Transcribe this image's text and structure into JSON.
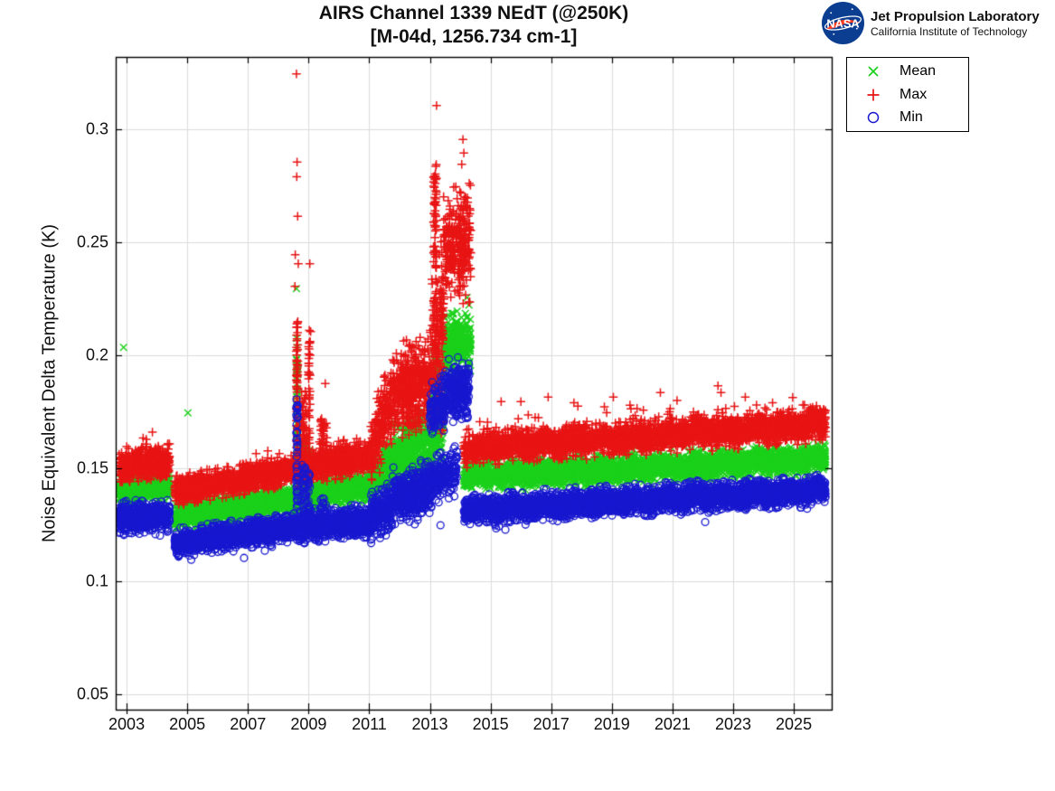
{
  "header": {
    "nasa_logo_text": "NASA",
    "org_name": "Jet Propulsion Laboratory",
    "org_sub": "California Institute of Technology",
    "logo_blue": "#0b3d91",
    "logo_red": "#fc3d21"
  },
  "chart_data": {
    "type": "scatter",
    "title": "AIRS Channel 1339 NEdT (@250K)",
    "subtitle": "[M-04d, 1256.734 cm-1]",
    "ylabel": "Noise Equivalent Delta Temperature (K)",
    "xlim": [
      2002.64,
      2026.25
    ],
    "ylim": [
      0.0432,
      0.332
    ],
    "xticks": [
      {
        "v": 2003,
        "label": "2003"
      },
      {
        "v": 2005,
        "label": "2005"
      },
      {
        "v": 2007,
        "label": "2007"
      },
      {
        "v": 2009,
        "label": "2009"
      },
      {
        "v": 2011,
        "label": "2011"
      },
      {
        "v": 2013,
        "label": "2013"
      },
      {
        "v": 2015,
        "label": "2015"
      },
      {
        "v": 2017,
        "label": "2017"
      },
      {
        "v": 2019,
        "label": "2019"
      },
      {
        "v": 2021,
        "label": "2021"
      },
      {
        "v": 2023,
        "label": "2023"
      },
      {
        "v": 2025,
        "label": "2025"
      }
    ],
    "yticks": [
      {
        "v": 0.05,
        "label": "0.05"
      },
      {
        "v": 0.1,
        "label": "0.1"
      },
      {
        "v": 0.15,
        "label": "0.15"
      },
      {
        "v": 0.2,
        "label": "0.2"
      },
      {
        "v": 0.25,
        "label": "0.25"
      },
      {
        "v": 0.3,
        "label": "0.3"
      }
    ],
    "grid": true,
    "grid_color": "#dcdcdc",
    "axis_color": "#000000",
    "legend_position": "outside-top-right",
    "seed": 42,
    "series": [
      {
        "name": "Mean",
        "marker": "x",
        "color": "#1bd11b",
        "segments": [
          {
            "x0": 2002.75,
            "x1": 2004.42,
            "y0": 0.1405,
            "y1": 0.1425,
            "sp": 0.0028,
            "n": 560
          },
          {
            "x0": 2004.58,
            "x1": 2008.5,
            "y0": 0.1285,
            "y1": 0.1365,
            "sp": 0.0026,
            "n": 1250
          },
          {
            "x0": 2008.5,
            "x1": 2011.05,
            "y0": 0.1365,
            "y1": 0.1425,
            "sp": 0.0028,
            "n": 820
          },
          {
            "x0": 2011.05,
            "x1": 2011.75,
            "y0": 0.144,
            "y1": 0.152,
            "sp": 0.005,
            "n": 230
          },
          {
            "x0": 2011.75,
            "x1": 2013.05,
            "y0": 0.153,
            "y1": 0.16,
            "sp": 0.0068,
            "n": 430
          },
          {
            "x0": 2013.05,
            "x1": 2013.45,
            "y0": 0.163,
            "y1": 0.175,
            "sp": 0.008,
            "n": 130
          },
          {
            "x0": 2013.45,
            "x1": 2014.35,
            "y0": 0.202,
            "y1": 0.206,
            "sp": 0.0062,
            "n": 300,
            "b": [
              0.05,
              0.012,
              1
            ]
          },
          {
            "x0": 2014.12,
            "x1": 2026.05,
            "y0": 0.1462,
            "y1": 0.1542,
            "sp": 0.0026,
            "n": 3800,
            "b": [
              0.02,
              0.007,
              1
            ],
            "wg": [
              0.0008,
              1.0,
              2014.5
            ]
          }
        ],
        "spikes": [
          {
            "x": 2008.62,
            "w": 0.05,
            "ymin": 0.145,
            "ymax": 0.198,
            "n": 40
          },
          {
            "x": 2008.85,
            "w": 0.18,
            "ymin": 0.137,
            "ymax": 0.162,
            "n": 45
          },
          {
            "x": 2009.02,
            "w": 0.05,
            "ymin": 0.14,
            "ymax": 0.158,
            "n": 20
          },
          {
            "x": 2009.5,
            "w": 0.22,
            "ymin": 0.138,
            "ymax": 0.157,
            "n": 40
          },
          {
            "x": 2012.4,
            "w": 0.5,
            "ymin": 0.158,
            "ymax": 0.172,
            "n": 50
          },
          {
            "x": 2013.2,
            "w": 0.18,
            "ymin": 0.175,
            "ymax": 0.205,
            "n": 50
          }
        ],
        "outliers": [
          [
            2002.9,
            0.2035
          ],
          [
            2005.02,
            0.1745
          ],
          [
            2008.6,
            0.2295
          ],
          [
            2008.61,
            0.2075
          ],
          [
            2008.62,
            0.2035
          ],
          [
            2008.6,
            0.1985
          ],
          [
            2008.63,
            0.1955
          ],
          [
            2008.64,
            0.1915
          ],
          [
            2013.48,
            0.2165
          ],
          [
            2013.52,
            0.2135
          ],
          [
            2013.56,
            0.211
          ]
        ]
      },
      {
        "name": "Max",
        "marker": "+",
        "color": "#e81414",
        "segments": [
          {
            "x0": 2002.75,
            "x1": 2004.42,
            "y0": 0.1505,
            "y1": 0.153,
            "sp": 0.0032,
            "n": 560,
            "b": [
              0.04,
              0.009,
              1
            ]
          },
          {
            "x0": 2004.58,
            "x1": 2008.5,
            "y0": 0.1398,
            "y1": 0.1492,
            "sp": 0.0027,
            "n": 1250,
            "b": [
              0.03,
              0.007,
              1
            ]
          },
          {
            "x0": 2008.5,
            "x1": 2011.05,
            "y0": 0.1492,
            "y1": 0.1552,
            "sp": 0.003,
            "n": 820,
            "b": [
              0.03,
              0.008,
              1
            ]
          },
          {
            "x0": 2011.05,
            "x1": 2011.75,
            "y0": 0.157,
            "y1": 0.18,
            "sp": 0.0075,
            "n": 230,
            "b": [
              0.05,
              0.012,
              1
            ]
          },
          {
            "x0": 2011.75,
            "x1": 2013.05,
            "y0": 0.183,
            "y1": 0.19,
            "sp": 0.0085,
            "n": 430,
            "b": [
              0.06,
              0.014,
              1
            ]
          },
          {
            "x0": 2013.05,
            "x1": 2013.45,
            "y0": 0.2,
            "y1": 0.225,
            "sp": 0.013,
            "n": 130,
            "b": [
              0.06,
              0.02,
              1
            ]
          },
          {
            "x0": 2013.45,
            "x1": 2014.35,
            "y0": 0.247,
            "y1": 0.25,
            "sp": 0.0105,
            "n": 300,
            "b": [
              0.05,
              0.022,
              1
            ]
          },
          {
            "x0": 2014.12,
            "x1": 2026.05,
            "y0": 0.1585,
            "y1": 0.1695,
            "sp": 0.003,
            "n": 3800,
            "b": [
              0.035,
              0.011,
              1
            ],
            "wg": [
              0.0009,
              1.0,
              2014.5
            ]
          }
        ],
        "spikes": [
          {
            "x": 2008.62,
            "w": 0.05,
            "ymin": 0.155,
            "ymax": 0.215,
            "n": 70
          },
          {
            "x": 2008.85,
            "w": 0.18,
            "ymin": 0.15,
            "ymax": 0.185,
            "n": 50
          },
          {
            "x": 2009.02,
            "w": 0.06,
            "ymin": 0.15,
            "ymax": 0.212,
            "n": 45
          },
          {
            "x": 2009.5,
            "w": 0.22,
            "ymin": 0.15,
            "ymax": 0.172,
            "n": 45
          },
          {
            "x": 2010.1,
            "w": 0.3,
            "ymin": 0.148,
            "ymax": 0.163,
            "n": 35
          },
          {
            "x": 2012.4,
            "w": 0.5,
            "ymin": 0.168,
            "ymax": 0.196,
            "n": 60
          },
          {
            "x": 2013.17,
            "w": 0.1,
            "ymin": 0.215,
            "ymax": 0.285,
            "n": 70
          },
          {
            "x": 2013.3,
            "w": 0.3,
            "ymin": 0.165,
            "ymax": 0.215,
            "n": 45
          }
        ],
        "outliers": [
          [
            2003.85,
            0.166
          ],
          [
            2008.6,
            0.3245
          ],
          [
            2008.62,
            0.2855
          ],
          [
            2008.61,
            0.279
          ],
          [
            2008.64,
            0.2615
          ],
          [
            2008.56,
            0.2445
          ],
          [
            2008.66,
            0.2405
          ],
          [
            2008.55,
            0.2305
          ],
          [
            2009.04,
            0.2405
          ],
          [
            2009.07,
            0.2105
          ],
          [
            2009.55,
            0.1875
          ],
          [
            2013.22,
            0.3105
          ],
          [
            2014.09,
            0.2955
          ],
          [
            2014.12,
            0.2895
          ],
          [
            2014.05,
            0.2845
          ],
          [
            2016.0,
            0.1795
          ],
          [
            2016.9,
            0.1815
          ],
          [
            2019.05,
            0.1815
          ],
          [
            2020.6,
            0.1835
          ],
          [
            2022.5,
            0.1865
          ],
          [
            2022.6,
            0.1835
          ],
          [
            2023.4,
            0.1815
          ],
          [
            2015.35,
            0.1795
          ],
          [
            2017.75,
            0.179
          ],
          [
            2021.15,
            0.18
          ],
          [
            2024.3,
            0.179
          ],
          [
            2025.3,
            0.178
          ]
        ]
      },
      {
        "name": "Min",
        "marker": "o",
        "color": "#1818d0",
        "segments": [
          {
            "x0": 2002.75,
            "x1": 2004.42,
            "y0": 0.1278,
            "y1": 0.1295,
            "sp": 0.003,
            "n": 560,
            "b": [
              0.04,
              0.006,
              -1
            ]
          },
          {
            "x0": 2004.58,
            "x1": 2008.5,
            "y0": 0.117,
            "y1": 0.1238,
            "sp": 0.0026,
            "n": 1250,
            "b": [
              0.03,
              0.005,
              -1
            ]
          },
          {
            "x0": 2008.5,
            "x1": 2011.05,
            "y0": 0.1238,
            "y1": 0.127,
            "sp": 0.003,
            "n": 820,
            "b": [
              0.03,
              0.005,
              -1
            ]
          },
          {
            "x0": 2011.05,
            "x1": 2011.75,
            "y0": 0.128,
            "y1": 0.133,
            "sp": 0.0045,
            "n": 230
          },
          {
            "x0": 2011.75,
            "x1": 2013.05,
            "y0": 0.1375,
            "y1": 0.1415,
            "sp": 0.0052,
            "n": 430
          },
          {
            "x0": 2013.05,
            "x1": 2013.9,
            "y0": 0.144,
            "y1": 0.15,
            "sp": 0.0048,
            "n": 200
          },
          {
            "x0": 2013.0,
            "x1": 2013.5,
            "y0": 0.1755,
            "y1": 0.1775,
            "sp": 0.0055,
            "n": 120
          },
          {
            "x0": 2013.5,
            "x1": 2014.3,
            "y0": 0.1835,
            "y1": 0.1855,
            "sp": 0.0058,
            "n": 260
          },
          {
            "x0": 2014.12,
            "x1": 2026.05,
            "y0": 0.1315,
            "y1": 0.1405,
            "sp": 0.0026,
            "n": 3800,
            "b": [
              0.025,
              0.006,
              -1
            ],
            "wg": [
              0.0008,
              1.0,
              2014.5
            ]
          }
        ],
        "spikes": [
          {
            "x": 2008.62,
            "w": 0.05,
            "ymin": 0.132,
            "ymax": 0.178,
            "n": 45
          },
          {
            "x": 2008.85,
            "w": 0.18,
            "ymin": 0.126,
            "ymax": 0.152,
            "n": 40
          },
          {
            "x": 2009.02,
            "w": 0.05,
            "ymin": 0.128,
            "ymax": 0.148,
            "n": 18
          },
          {
            "x": 2009.5,
            "w": 0.2,
            "ymin": 0.123,
            "ymax": 0.138,
            "n": 30
          },
          {
            "x": 2012.4,
            "w": 0.5,
            "ymin": 0.13,
            "ymax": 0.142,
            "n": 40
          }
        ],
        "outliers": [
          [
            2008.6,
            0.1805
          ],
          [
            2008.61,
            0.1765
          ],
          [
            2008.63,
            0.1725
          ],
          [
            2003.3,
            0.1218
          ],
          [
            2003.95,
            0.1208
          ],
          [
            2004.1,
            0.1202
          ],
          [
            2004.65,
            0.1122
          ],
          [
            2004.75,
            0.1118
          ],
          [
            2005.0,
            0.1128
          ],
          [
            2010.55,
            0.1228
          ],
          [
            2011.0,
            0.1215
          ],
          [
            2012.5,
            0.1252
          ],
          [
            2012.6,
            0.1285
          ],
          [
            2013.35,
            0.1248
          ],
          [
            2014.6,
            0.1262
          ],
          [
            2015.15,
            0.1272
          ],
          [
            2016.3,
            0.1282
          ],
          [
            2018.4,
            0.1305
          ],
          [
            2020.3,
            0.1318
          ],
          [
            2022.2,
            0.1328
          ],
          [
            2024.1,
            0.1338
          ]
        ]
      }
    ]
  }
}
